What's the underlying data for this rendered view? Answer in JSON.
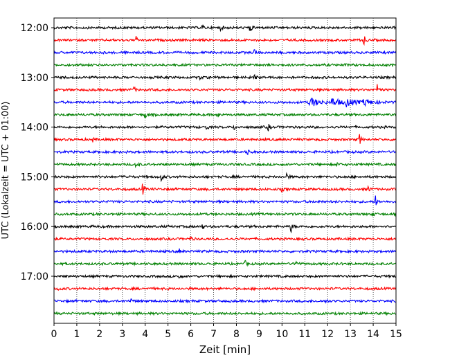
{
  "chart_data": {
    "type": "line",
    "title": "",
    "xlabel": "Zeit  [min]",
    "ylabel": "UTC (Lokalzeit = UTC + 01:00)",
    "xlim": [
      0,
      15
    ],
    "x_ticks": [
      0,
      1,
      2,
      3,
      4,
      5,
      6,
      7,
      8,
      9,
      10,
      11,
      12,
      13,
      14,
      15
    ],
    "x_tick_labels": [
      "0",
      "1",
      "2",
      "3",
      "4",
      "5",
      "6",
      "7",
      "8",
      "9",
      "10",
      "11",
      "12",
      "13",
      "14",
      "15"
    ],
    "y_tick_labels": [
      "12:00",
      "13:00",
      "14:00",
      "15:00",
      "16:00",
      "17:00"
    ],
    "y_tick_rows": [
      0,
      4,
      8,
      12,
      16,
      20
    ],
    "grid": "vertical-dotted",
    "trace_colors": [
      "#000000",
      "#ff0000",
      "#0000ff",
      "#008000"
    ],
    "rows": [
      {
        "time": "12:00",
        "color": "#000000",
        "events": [
          {
            "t": 8.6,
            "a": 1.0
          },
          {
            "t": 6.5,
            "a": 0.45
          },
          {
            "t": 7.3,
            "a": 0.35
          }
        ]
      },
      {
        "time": "12:15",
        "color": "#ff0000",
        "events": [
          {
            "t": 13.6,
            "a": 1.0
          },
          {
            "t": 3.6,
            "a": 0.5
          }
        ]
      },
      {
        "time": "12:30",
        "color": "#0000ff",
        "events": [
          {
            "t": 8.8,
            "a": 0.5
          }
        ]
      },
      {
        "time": "12:45",
        "color": "#008000",
        "events": [
          {
            "t": 12.7,
            "a": 0.3
          }
        ]
      },
      {
        "time": "13:00",
        "color": "#000000",
        "events": [
          {
            "t": 8.8,
            "a": 0.6
          },
          {
            "t": 6.4,
            "a": 0.35
          }
        ]
      },
      {
        "time": "13:15",
        "color": "#ff0000",
        "events": [
          {
            "t": 14.2,
            "a": 0.9
          },
          {
            "t": 3.5,
            "a": 0.5
          }
        ]
      },
      {
        "time": "13:30",
        "color": "#0000ff",
        "events": [
          {
            "t": 11.2,
            "a": 0.9
          },
          {
            "t": 12.2,
            "a": 0.7
          },
          {
            "t": 12.8,
            "a": 0.75
          },
          {
            "t": 13.6,
            "a": 0.55
          }
        ]
      },
      {
        "time": "13:45",
        "color": "#008000",
        "events": [
          {
            "t": 4.0,
            "a": 0.7
          },
          {
            "t": 7.2,
            "a": 0.4
          }
        ]
      },
      {
        "time": "14:00",
        "color": "#000000",
        "events": [
          {
            "t": 9.4,
            "a": 0.6
          },
          {
            "t": 6.7,
            "a": 0.4
          },
          {
            "t": 7.9,
            "a": 0.35
          }
        ]
      },
      {
        "time": "14:15",
        "color": "#ff0000",
        "events": [
          {
            "t": 13.4,
            "a": 0.9
          },
          {
            "t": 1.7,
            "a": 0.35
          }
        ]
      },
      {
        "time": "14:30",
        "color": "#0000ff",
        "events": [
          {
            "t": 8.5,
            "a": 0.45
          }
        ]
      },
      {
        "time": "14:45",
        "color": "#008000",
        "events": [
          {
            "t": 3.6,
            "a": 0.8
          },
          {
            "t": 12.4,
            "a": 0.4
          }
        ]
      },
      {
        "time": "15:00",
        "color": "#000000",
        "events": [
          {
            "t": 4.7,
            "a": 0.7
          },
          {
            "t": 10.2,
            "a": 0.7
          },
          {
            "t": 3.2,
            "a": 0.4
          }
        ]
      },
      {
        "time": "15:15",
        "color": "#ff0000",
        "events": [
          {
            "t": 3.9,
            "a": 0.85
          },
          {
            "t": 13.8,
            "a": 0.5
          },
          {
            "t": 10.0,
            "a": 0.35
          }
        ]
      },
      {
        "time": "15:30",
        "color": "#0000ff",
        "events": [
          {
            "t": 14.1,
            "a": 1.0
          },
          {
            "t": 11.5,
            "a": 0.4
          }
        ]
      },
      {
        "time": "15:45",
        "color": "#008000",
        "events": [
          {
            "t": 14.0,
            "a": 0.4
          }
        ]
      },
      {
        "time": "16:00",
        "color": "#000000",
        "events": [
          {
            "t": 10.4,
            "a": 0.9
          },
          {
            "t": 6.5,
            "a": 0.45
          }
        ]
      },
      {
        "time": "16:15",
        "color": "#ff0000",
        "events": [
          {
            "t": 6.0,
            "a": 0.4
          }
        ]
      },
      {
        "time": "16:30",
        "color": "#0000ff",
        "events": [
          {
            "t": 5.5,
            "a": 0.35
          }
        ]
      },
      {
        "time": "16:45",
        "color": "#008000",
        "events": [
          {
            "t": 10.6,
            "a": 1.0
          },
          {
            "t": 8.4,
            "a": 0.4
          }
        ]
      },
      {
        "time": "17:00",
        "color": "#000000",
        "events": [
          {
            "t": 5.5,
            "a": 0.35
          }
        ]
      },
      {
        "time": "17:15",
        "color": "#ff0000",
        "events": [
          {
            "t": 0.2,
            "a": 0.3
          }
        ]
      },
      {
        "time": "17:30",
        "color": "#0000ff",
        "events": [
          {
            "t": 11.9,
            "a": 0.6
          },
          {
            "t": 3.4,
            "a": 0.35
          }
        ]
      },
      {
        "time": "17:45",
        "color": "#008000",
        "events": []
      }
    ]
  }
}
